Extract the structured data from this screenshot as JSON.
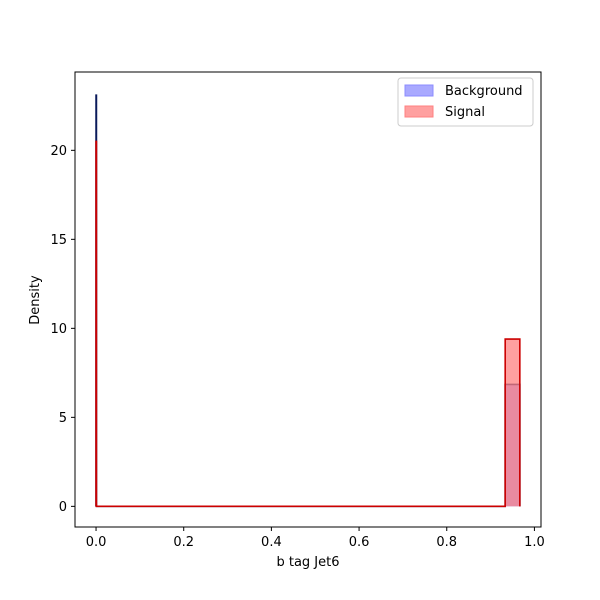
{
  "chart_data": {
    "type": "histogram",
    "title": "",
    "xlabel": "b tag Jet6",
    "ylabel": "Density",
    "xlim": [
      -0.048,
      1.015
    ],
    "ylim": [
      -1.16,
      24.4
    ],
    "xticks": [
      0.0,
      0.2,
      0.4,
      0.6,
      0.8,
      1.0
    ],
    "xtick_labels": [
      "0.0",
      "0.2",
      "0.4",
      "0.6",
      "0.8",
      "1.0"
    ],
    "yticks": [
      0,
      5,
      10,
      15,
      20
    ],
    "ytick_labels": [
      "0",
      "5",
      "10",
      "15",
      "20"
    ],
    "grid": false,
    "legend_position": "top-right",
    "bin_width": 0.0333,
    "series": [
      {
        "name": "Background",
        "fill_color": "#8c8cff",
        "edge_color": "#0a1a5a",
        "bins": [
          {
            "x0": 0.0,
            "x1": 0.0009,
            "value": 23.1
          },
          {
            "x0": 0.0009,
            "x1": 0.9333,
            "value": 0.0
          },
          {
            "x0": 0.9333,
            "x1": 0.9667,
            "value": 6.85
          }
        ]
      },
      {
        "name": "Signal",
        "fill_color": "#ff8080",
        "edge_color": "#cc0000",
        "bins": [
          {
            "x0": 0.0,
            "x1": 0.0009,
            "value": 20.5
          },
          {
            "x0": 0.0009,
            "x1": 0.9333,
            "value": 0.0
          },
          {
            "x0": 0.9333,
            "x1": 0.9667,
            "value": 9.4
          }
        ]
      }
    ]
  }
}
